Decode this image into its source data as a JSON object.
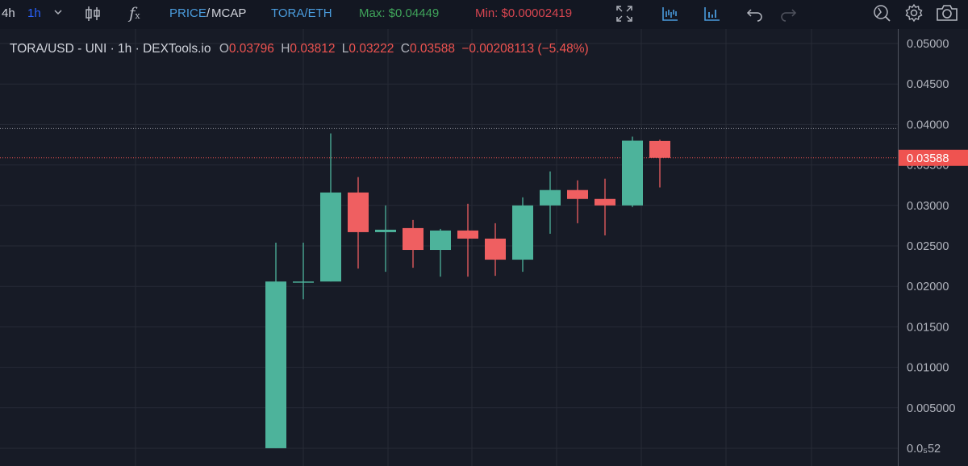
{
  "toolbar": {
    "interval_4h": "4h",
    "interval_1h": "1h",
    "price_label": "PRICE",
    "slash": "/",
    "mcap_label": "MCAP",
    "pair_eth": "TORA/ETH",
    "max_label": "Max: $0.04449",
    "min_label": "Min: $0.00002419",
    "icons": [
      "chevron-down-icon",
      "candlestick-icon",
      "function-icon",
      "fullscreen-icon",
      "indicators-icon",
      "bar-chart-icon",
      "undo-icon",
      "redo-icon",
      "magic-wand-icon",
      "gear-icon",
      "camera-icon"
    ]
  },
  "header": {
    "title": "TORA/USD - UNI · 1h · DEXTools.io",
    "o_key": "O",
    "o_val": "0.03796",
    "h_key": "H",
    "h_val": "0.03812",
    "l_key": "L",
    "l_val": "0.03222",
    "c_key": "C",
    "c_val": "0.03588",
    "change": "−0.00208113 (−5.48%)"
  },
  "colors": {
    "up": "#4db39b",
    "down": "#ef5f61",
    "background": "#171b26",
    "grid": "#272b36",
    "price_line": "#ef5350"
  },
  "chart_data": {
    "type": "candlestick",
    "title": "TORA/USD - UNI · 1h · DEXTools.io",
    "ylim": [
      0,
      0.05
    ],
    "y_ticks": [
      "0.05000",
      "0.04500",
      "0.04000",
      "0.03500",
      "0.03000",
      "0.02500",
      "0.02000",
      "0.01500",
      "0.01000",
      "0.005000",
      "0.0₅52"
    ],
    "y_tick_values": [
      0.05,
      0.045,
      0.04,
      0.035,
      0.03,
      0.025,
      0.02,
      0.015,
      0.01,
      0.005,
      5.2e-06
    ],
    "last_price_label": "0.03588",
    "last_price": 0.03588,
    "max_line": 0.0395,
    "grid": true,
    "candles": [
      {
        "o": 5.2e-06,
        "h": 0.0254,
        "l": 5.2e-06,
        "c": 0.0206
      },
      {
        "o": 0.0205,
        "h": 0.0254,
        "l": 0.0184,
        "c": 0.0206
      },
      {
        "o": 0.0206,
        "h": 0.0389,
        "l": 0.0206,
        "c": 0.0316
      },
      {
        "o": 0.0316,
        "h": 0.0335,
        "l": 0.0222,
        "c": 0.0267
      },
      {
        "o": 0.0267,
        "h": 0.03,
        "l": 0.0218,
        "c": 0.027
      },
      {
        "o": 0.0272,
        "h": 0.0282,
        "l": 0.0223,
        "c": 0.0245
      },
      {
        "o": 0.0245,
        "h": 0.0271,
        "l": 0.0212,
        "c": 0.0269
      },
      {
        "o": 0.0269,
        "h": 0.0302,
        "l": 0.0212,
        "c": 0.0259
      },
      {
        "o": 0.0259,
        "h": 0.0278,
        "l": 0.0213,
        "c": 0.0233
      },
      {
        "o": 0.0233,
        "h": 0.031,
        "l": 0.0218,
        "c": 0.03
      },
      {
        "o": 0.03,
        "h": 0.0342,
        "l": 0.0265,
        "c": 0.0319
      },
      {
        "o": 0.0319,
        "h": 0.0331,
        "l": 0.0278,
        "c": 0.0308
      },
      {
        "o": 0.0308,
        "h": 0.0333,
        "l": 0.0263,
        "c": 0.03
      },
      {
        "o": 0.03,
        "h": 0.0385,
        "l": 0.0298,
        "c": 0.038
      },
      {
        "o": 0.03796,
        "h": 0.03812,
        "l": 0.03222,
        "c": 0.03588
      }
    ]
  }
}
